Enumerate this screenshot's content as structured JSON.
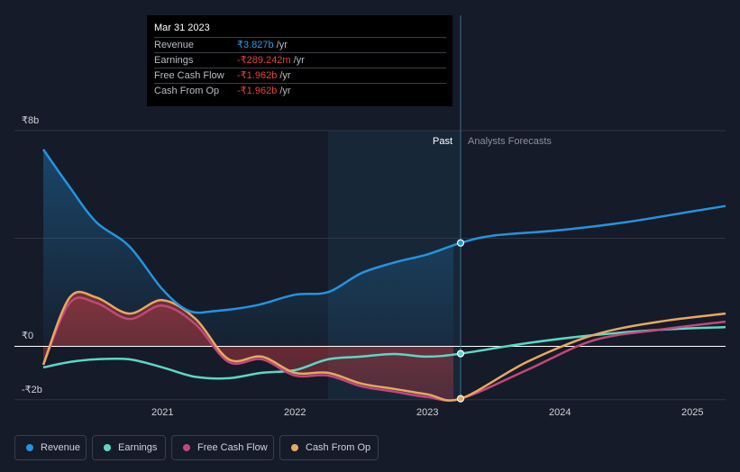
{
  "colors": {
    "revenue": "#2394df",
    "earnings": "#5ad8c5",
    "free_cash_flow": "#c2487b",
    "cash_from_op": "#e8a861",
    "background": "#151b28"
  },
  "tooltip": {
    "date": "Mar 31 2023",
    "rows": [
      {
        "label": "Revenue",
        "value": "₹3.827b",
        "unit": "/yr",
        "color": "#2f9be8"
      },
      {
        "label": "Earnings",
        "value": "-₹289.242m",
        "unit": "/yr",
        "color": "#e5423f"
      },
      {
        "label": "Free Cash Flow",
        "value": "-₹1.962b",
        "unit": "/yr",
        "color": "#e5423f"
      },
      {
        "label": "Cash From Op",
        "value": "-₹1.962b",
        "unit": "/yr",
        "color": "#e5423f"
      }
    ]
  },
  "legend": [
    {
      "label": "Revenue",
      "color": "#2394df"
    },
    {
      "label": "Earnings",
      "color": "#5ad8c5"
    },
    {
      "label": "Free Cash Flow",
      "color": "#c2487b"
    },
    {
      "label": "Cash From Op",
      "color": "#e8a861"
    }
  ],
  "chart_data": {
    "type": "line",
    "title": "",
    "xlabel": "",
    "ylabel": "",
    "xlim": [
      2020.1,
      2025.25
    ],
    "ylim": [
      -2,
      8
    ],
    "y_tick_labels": [
      {
        "value": 8,
        "label": "₹8b"
      },
      {
        "value": 0,
        "label": "₹0"
      },
      {
        "value": -2,
        "label": "-₹2b"
      }
    ],
    "x_tick_labels": [
      {
        "value": 2021,
        "label": "2021"
      },
      {
        "value": 2022,
        "label": "2022"
      },
      {
        "value": 2023,
        "label": "2023"
      },
      {
        "value": 2024,
        "label": "2024"
      },
      {
        "value": 2025,
        "label": "2025"
      }
    ],
    "past_label": "Past",
    "forecast_label": "Analysts Forecasts",
    "past_start": 2022.25,
    "divider": 2023.25,
    "series": [
      {
        "name": "Revenue",
        "points": [
          [
            2020.1,
            7.3
          ],
          [
            2020.3,
            5.9
          ],
          [
            2020.5,
            4.6
          ],
          [
            2020.75,
            3.7
          ],
          [
            2021.0,
            2.1
          ],
          [
            2021.2,
            1.3
          ],
          [
            2021.4,
            1.3
          ],
          [
            2021.7,
            1.5
          ],
          [
            2022.0,
            1.9
          ],
          [
            2022.25,
            2.0
          ],
          [
            2022.5,
            2.7
          ],
          [
            2022.75,
            3.1
          ],
          [
            2023.0,
            3.4
          ],
          [
            2023.25,
            3.827
          ],
          [
            2023.5,
            4.1
          ],
          [
            2024.0,
            4.3
          ],
          [
            2024.5,
            4.6
          ],
          [
            2025.0,
            5.0
          ],
          [
            2025.25,
            5.2
          ]
        ]
      },
      {
        "name": "Earnings",
        "points": [
          [
            2020.1,
            -0.8
          ],
          [
            2020.3,
            -0.6
          ],
          [
            2020.5,
            -0.5
          ],
          [
            2020.75,
            -0.5
          ],
          [
            2021.0,
            -0.8
          ],
          [
            2021.25,
            -1.15
          ],
          [
            2021.5,
            -1.2
          ],
          [
            2021.75,
            -1.0
          ],
          [
            2022.0,
            -0.9
          ],
          [
            2022.25,
            -0.5
          ],
          [
            2022.5,
            -0.4
          ],
          [
            2022.75,
            -0.3
          ],
          [
            2023.0,
            -0.4
          ],
          [
            2023.25,
            -0.289
          ],
          [
            2023.75,
            0.1
          ],
          [
            2024.25,
            0.4
          ],
          [
            2024.75,
            0.6
          ],
          [
            2025.25,
            0.7
          ]
        ]
      },
      {
        "name": "Free Cash Flow",
        "points": [
          [
            2020.1,
            -0.7
          ],
          [
            2020.3,
            1.6
          ],
          [
            2020.5,
            1.6
          ],
          [
            2020.75,
            1.0
          ],
          [
            2021.0,
            1.5
          ],
          [
            2021.25,
            0.8
          ],
          [
            2021.5,
            -0.6
          ],
          [
            2021.75,
            -0.5
          ],
          [
            2022.0,
            -1.1
          ],
          [
            2022.25,
            -1.1
          ],
          [
            2022.5,
            -1.5
          ],
          [
            2022.75,
            -1.7
          ],
          [
            2023.0,
            -1.9
          ],
          [
            2023.25,
            -1.962
          ],
          [
            2023.75,
            -0.9
          ],
          [
            2024.25,
            0.2
          ],
          [
            2024.75,
            0.6
          ],
          [
            2025.25,
            0.9
          ]
        ]
      },
      {
        "name": "Cash From Op",
        "points": [
          [
            2020.1,
            -0.7
          ],
          [
            2020.3,
            1.8
          ],
          [
            2020.5,
            1.8
          ],
          [
            2020.75,
            1.2
          ],
          [
            2021.0,
            1.7
          ],
          [
            2021.25,
            1.0
          ],
          [
            2021.5,
            -0.5
          ],
          [
            2021.75,
            -0.4
          ],
          [
            2022.0,
            -1.0
          ],
          [
            2022.25,
            -1.0
          ],
          [
            2022.5,
            -1.4
          ],
          [
            2022.75,
            -1.6
          ],
          [
            2023.0,
            -1.8
          ],
          [
            2023.25,
            -1.962
          ],
          [
            2023.75,
            -0.6
          ],
          [
            2024.25,
            0.4
          ],
          [
            2024.75,
            0.9
          ],
          [
            2025.25,
            1.2
          ]
        ]
      }
    ]
  }
}
